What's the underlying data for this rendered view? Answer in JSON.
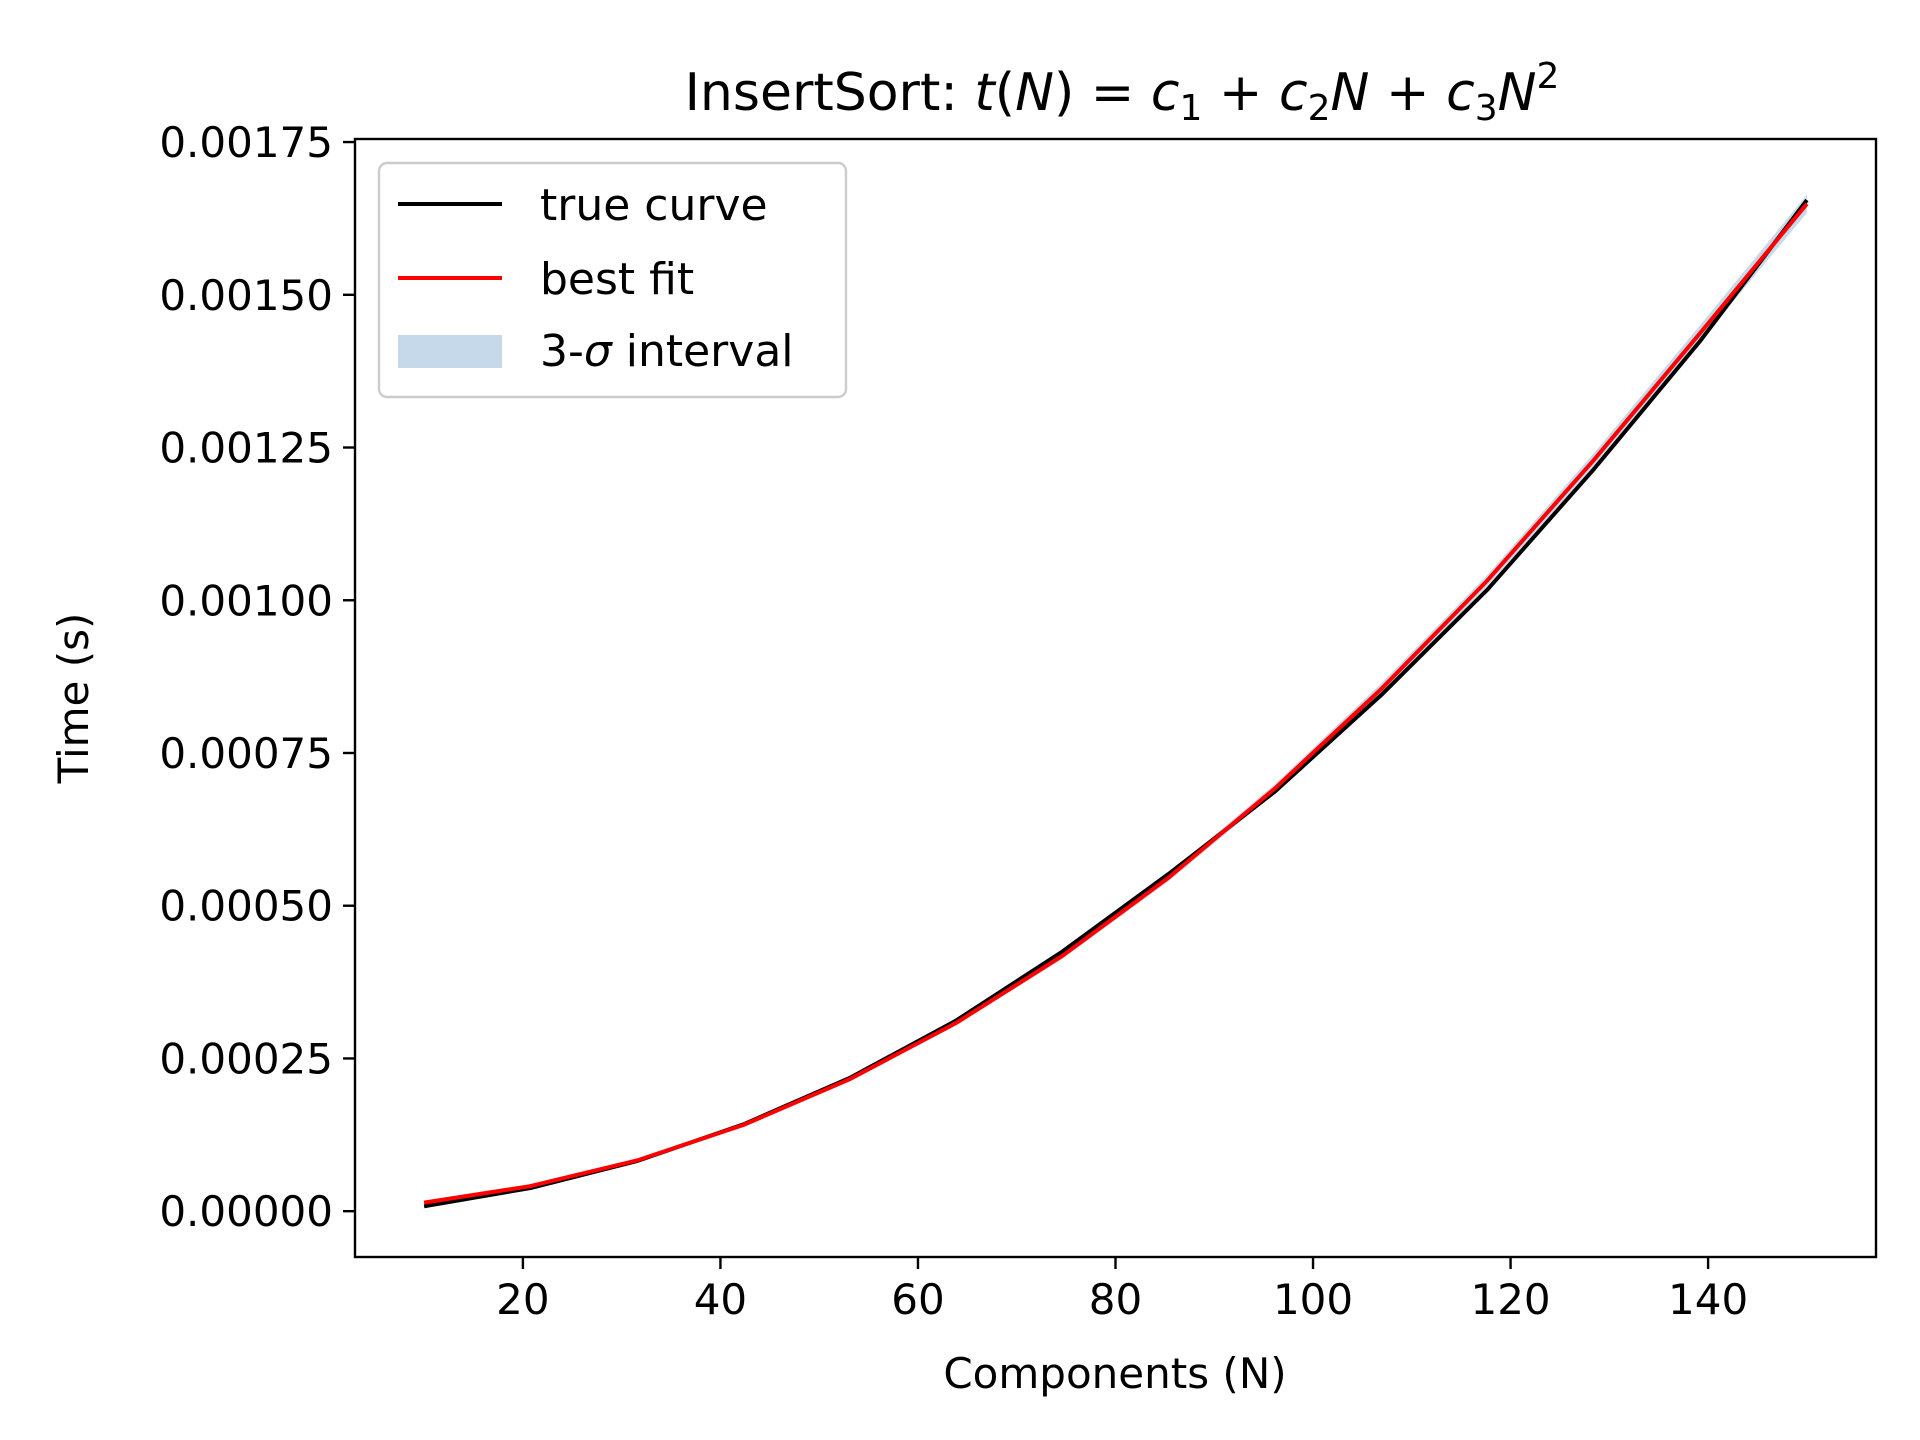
{
  "chart_data": {
    "type": "line",
    "title_parts": {
      "prefix": "InsertSort: ",
      "t": "t",
      "N": "N",
      "c": "c",
      "sub1": "1",
      "sub2": "2",
      "sub3": "3",
      "sup2": "2"
    },
    "xlabel": "Components (N)",
    "ylabel": "Time (s)",
    "xlim": [
      3,
      157
    ],
    "ylim": [
      -7.5e-05,
      0.001755
    ],
    "xticks": [
      20,
      40,
      60,
      80,
      100,
      120,
      140
    ],
    "xtick_labels": [
      "20",
      "40",
      "60",
      "80",
      "100",
      "120",
      "140"
    ],
    "yticks": [
      0,
      0.00025,
      0.0005,
      0.00075,
      0.001,
      0.00125,
      0.0015,
      0.00175
    ],
    "ytick_labels": [
      "0.00000",
      "0.00025",
      "0.00050",
      "0.00075",
      "0.00100",
      "0.00125",
      "0.00150",
      "0.00175"
    ],
    "x": [
      10,
      20.77,
      31.54,
      42.31,
      53.08,
      63.85,
      74.62,
      85.38,
      96.15,
      106.92,
      117.69,
      128.46,
      139.23,
      150
    ],
    "series": [
      {
        "name": "true curve",
        "color": "#000000",
        "values": [
          8e-06,
          3.8e-05,
          8.2e-05,
          0.000142,
          0.000218,
          0.000312,
          0.000425,
          0.000552,
          0.000687,
          0.000845,
          0.001018,
          0.001215,
          0.001425,
          0.001655
        ]
      },
      {
        "name": "best fit",
        "color": "#ff0000",
        "values": [
          1.4e-05,
          4.1e-05,
          8.3e-05,
          0.000141,
          0.000216,
          0.000308,
          0.000418,
          0.000546,
          0.000692,
          0.000855,
          0.001033,
          0.00123,
          0.001438,
          0.001649
        ]
      }
    ],
    "band": {
      "name": "3-σ interval",
      "name_prefix": "3-",
      "name_sigma": "σ",
      "name_suffix": " interval",
      "color": "#c6d9ea",
      "lower": [
        1.1e-05,
        3.8e-05,
        8e-05,
        0.000138,
        0.000212,
        0.000304,
        0.000413,
        0.00054,
        0.000685,
        0.000846,
        0.001024,
        0.001219,
        0.001425,
        0.001634
      ],
      "upper": [
        1.7e-05,
        4.4e-05,
        8.6e-05,
        0.000144,
        0.00022,
        0.000312,
        0.000423,
        0.000552,
        0.000699,
        0.000864,
        0.001042,
        0.001241,
        0.001451,
        0.001664
      ]
    },
    "legend_position": "upper-left",
    "grid": false
  }
}
